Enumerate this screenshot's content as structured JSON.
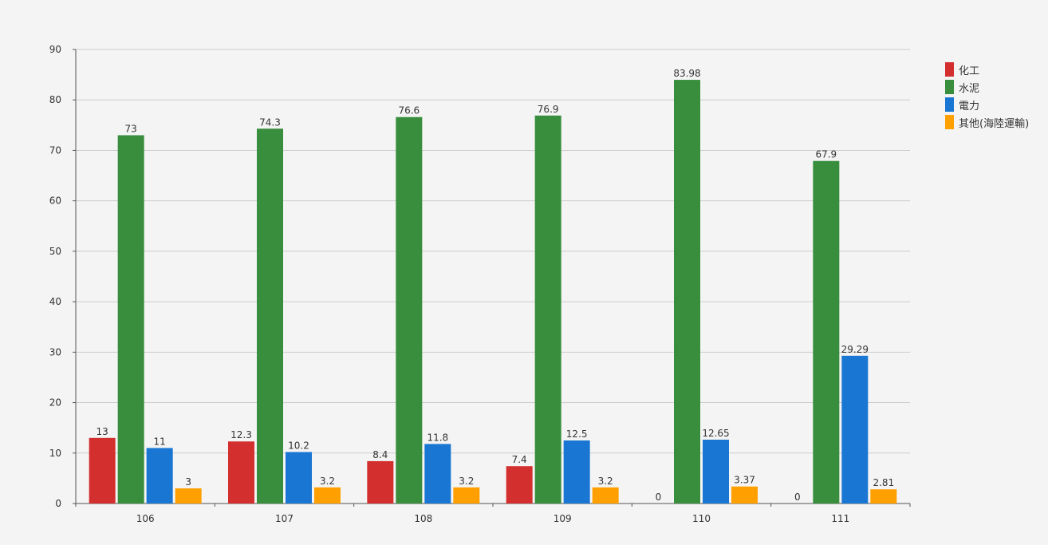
{
  "chart_data": {
    "type": "bar",
    "title": "",
    "xlabel": "",
    "ylabel": "",
    "categories": [
      "106",
      "107",
      "108",
      "109",
      "110",
      "111"
    ],
    "ylim": [
      0,
      90
    ],
    "yticks": [
      0,
      10,
      20,
      30,
      40,
      50,
      60,
      70,
      80,
      90
    ],
    "grid": true,
    "legend_position": "right",
    "series": [
      {
        "name": "化工",
        "color": "#d32f2f",
        "values": [
          13,
          12.3,
          8.4,
          7.4,
          0,
          0
        ]
      },
      {
        "name": "水泥",
        "color": "#388e3c",
        "values": [
          73,
          74.3,
          76.6,
          76.9,
          83.98,
          67.9
        ]
      },
      {
        "name": "電力",
        "color": "#1976d2",
        "values": [
          11,
          10.2,
          11.8,
          12.5,
          12.65,
          29.29
        ]
      },
      {
        "name": "其他(海陸運輸)",
        "color": "#ffa000",
        "values": [
          3,
          3.2,
          3.2,
          3.2,
          3.37,
          2.81
        ]
      }
    ]
  }
}
